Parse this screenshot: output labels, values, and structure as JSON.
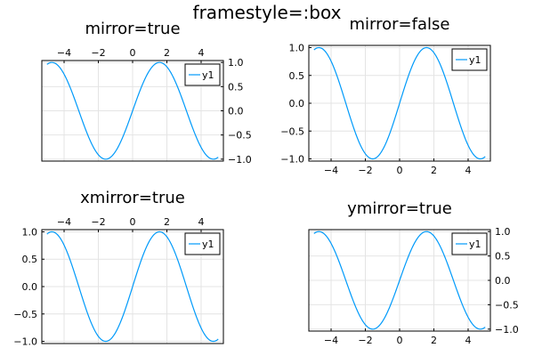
{
  "suptitle": "framestyle=:box",
  "chart_data": [
    {
      "type": "line",
      "title": "mirror=true",
      "xlabel": "",
      "ylabel": "",
      "xlim": [
        -5.3,
        5.3
      ],
      "ylim": [
        -1.04,
        1.04
      ],
      "xticks": [
        -4,
        -2,
        0,
        2,
        4
      ],
      "yticks": [
        1.0,
        0.5,
        0.0,
        -0.5,
        -1.0
      ],
      "xtick_labels": [
        "−4",
        "−2",
        "0",
        "2",
        "4"
      ],
      "ytick_labels": [
        "1.0",
        "0.5",
        "0.0",
        "−0.5",
        "−1.0"
      ],
      "x_axis_side": "top",
      "y_axis_side": "right",
      "grid": true,
      "legend": "top-right",
      "series": [
        {
          "name": "y1",
          "function": "sin(x)",
          "x_range": [
            -5,
            5
          ],
          "color": "#009AFA"
        }
      ]
    },
    {
      "type": "line",
      "title": "mirror=false",
      "xlabel": "",
      "ylabel": "",
      "xlim": [
        -5.3,
        5.3
      ],
      "ylim": [
        -1.04,
        1.04
      ],
      "xticks": [
        -4,
        -2,
        0,
        2,
        4
      ],
      "yticks": [
        1.0,
        0.5,
        0.0,
        -0.5,
        -1.0
      ],
      "xtick_labels": [
        "−4",
        "−2",
        "0",
        "2",
        "4"
      ],
      "ytick_labels": [
        "1.0",
        "0.5",
        "0.0",
        "−0.5",
        "−1.0"
      ],
      "x_axis_side": "bottom",
      "y_axis_side": "left",
      "grid": true,
      "legend": "top-right",
      "series": [
        {
          "name": "y1",
          "function": "sin(x)",
          "x_range": [
            -5,
            5
          ],
          "color": "#009AFA"
        }
      ]
    },
    {
      "type": "line",
      "title": "xmirror=true",
      "xlabel": "",
      "ylabel": "",
      "xlim": [
        -5.3,
        5.3
      ],
      "ylim": [
        -1.04,
        1.04
      ],
      "xticks": [
        -4,
        -2,
        0,
        2,
        4
      ],
      "yticks": [
        1.0,
        0.5,
        0.0,
        -0.5,
        -1.0
      ],
      "xtick_labels": [
        "−4",
        "−2",
        "0",
        "2",
        "4"
      ],
      "ytick_labels": [
        "1.0",
        "0.5",
        "0.0",
        "−0.5",
        "−1.0"
      ],
      "x_axis_side": "top",
      "y_axis_side": "left",
      "grid": true,
      "legend": "top-right",
      "series": [
        {
          "name": "y1",
          "function": "sin(x)",
          "x_range": [
            -5,
            5
          ],
          "color": "#009AFA"
        }
      ]
    },
    {
      "type": "line",
      "title": "ymirror=true",
      "xlabel": "",
      "ylabel": "",
      "xlim": [
        -5.3,
        5.3
      ],
      "ylim": [
        -1.04,
        1.04
      ],
      "xticks": [
        -4,
        -2,
        0,
        2,
        4
      ],
      "yticks": [
        1.0,
        0.5,
        0.0,
        -0.5,
        -1.0
      ],
      "xtick_labels": [
        "−4",
        "−2",
        "0",
        "2",
        "4"
      ],
      "ytick_labels": [
        "1.0",
        "0.5",
        "0.0",
        "−0.5",
        "−1.0"
      ],
      "x_axis_side": "bottom",
      "y_axis_side": "right",
      "grid": true,
      "legend": "top-right",
      "series": [
        {
          "name": "y1",
          "function": "sin(x)",
          "x_range": [
            -5,
            5
          ],
          "color": "#009AFA"
        }
      ]
    }
  ]
}
